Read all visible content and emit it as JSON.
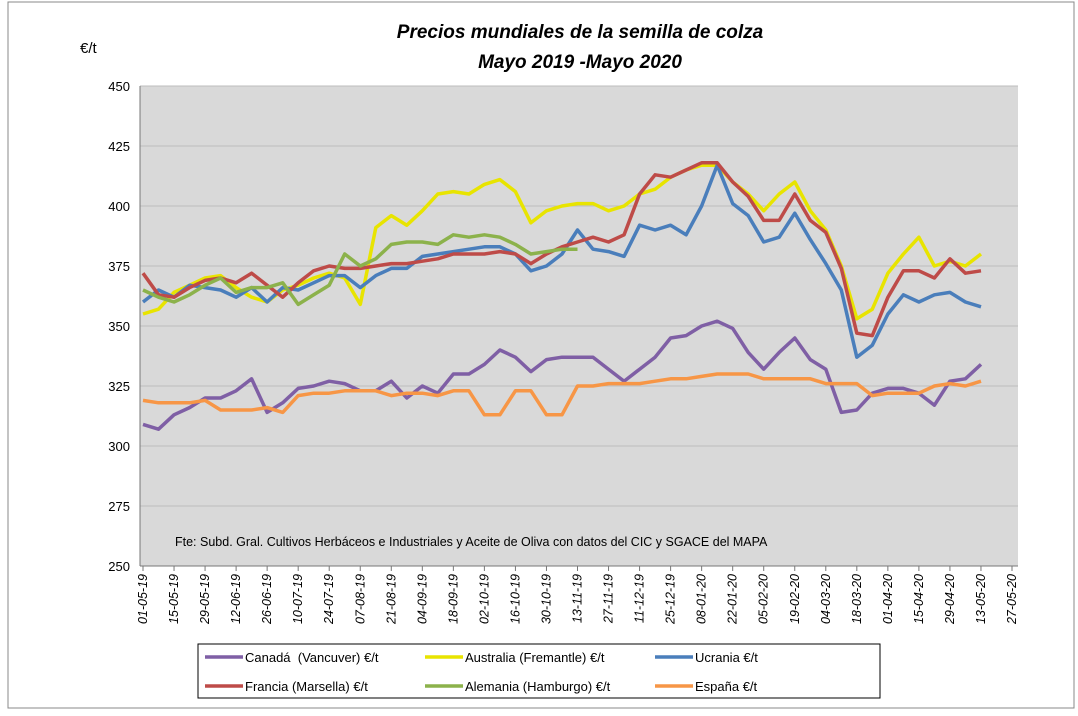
{
  "chart_data": {
    "type": "line",
    "title": "Precios mundiales de la semilla de colza",
    "subtitle": "Mayo 2019 -Mayo 2020",
    "y_label": "€/t",
    "annotation": "Fte: Subd. Gral. Cultivos Herbáceos e Industriales y Aceite de Oliva con datos del CIC y SGACE del MAPA",
    "categories": [
      "01-05-19",
      null,
      "15-05-19",
      null,
      "29-05-19",
      null,
      "12-06-19",
      null,
      "26-06-19",
      null,
      "10-07-19",
      null,
      "24-07-19",
      null,
      "07-08-19",
      null,
      "21-08-19",
      null,
      "04-09-19",
      null,
      "18-09-19",
      null,
      "02-10-19",
      null,
      "16-10-19",
      null,
      "30-10-19",
      null,
      "13-11-19",
      null,
      "27-11-19",
      null,
      "11-12-19",
      null,
      "25-12-19",
      null,
      "08-01-20",
      null,
      "22-01-20",
      null,
      "05-02-20",
      null,
      "19-02-20",
      null,
      "04-03-20",
      null,
      "18-03-20",
      null,
      "01-04-20",
      null,
      "15-04-20",
      null,
      "29-04-20",
      null,
      "13-05-20",
      null,
      "27-05-20"
    ],
    "ylim": [
      250,
      450
    ],
    "yticks": [
      250,
      275,
      300,
      325,
      350,
      375,
      400,
      425,
      450
    ],
    "grid": true,
    "legend": "bottom",
    "series": [
      {
        "name": "Canadá  (Vancuver) €/t",
        "color": "#7f5fa5",
        "values": [
          309,
          307,
          313,
          316,
          320,
          320,
          323,
          328,
          314,
          318,
          324,
          325,
          327,
          326,
          323,
          323,
          327,
          320,
          325,
          322,
          330,
          330,
          334,
          340,
          337,
          331,
          336,
          337,
          337,
          337,
          332,
          327,
          332,
          337,
          345,
          346,
          350,
          352,
          349,
          339,
          332,
          339,
          345,
          336,
          332,
          314,
          315,
          322,
          324,
          324,
          322,
          317,
          327,
          328,
          334,
          null,
          null
        ]
      },
      {
        "name": "Australia (Fremantle) €/t",
        "color": "#e8e400",
        "values": [
          355,
          357,
          364,
          367,
          370,
          371,
          366,
          362,
          360,
          365,
          367,
          370,
          372,
          370,
          359,
          391,
          396,
          392,
          398,
          405,
          406,
          405,
          409,
          411,
          406,
          393,
          398,
          400,
          401,
          401,
          398,
          400,
          405,
          407,
          412,
          415,
          417,
          417,
          410,
          405,
          398,
          405,
          410,
          398,
          390,
          375,
          353,
          357,
          372,
          380,
          387,
          375,
          377,
          375,
          380,
          null,
          null
        ]
      },
      {
        "name": "Ucrania €/t",
        "color": "#4a7ebb",
        "values": [
          360,
          365,
          362,
          367,
          366,
          365,
          362,
          366,
          360,
          366,
          365,
          368,
          371,
          371,
          366,
          371,
          374,
          374,
          379,
          380,
          381,
          382,
          383,
          383,
          380,
          373,
          375,
          380,
          390,
          382,
          381,
          379,
          392,
          390,
          392,
          388,
          400,
          417,
          401,
          396,
          385,
          387,
          397,
          386,
          376,
          365,
          337,
          342,
          355,
          363,
          360,
          363,
          364,
          360,
          358,
          null,
          null
        ]
      },
      {
        "name": "Francia (Marsella) €/t",
        "color": "#be4b48",
        "values": [
          372,
          363,
          362,
          366,
          369,
          370,
          368,
          372,
          367,
          362,
          368,
          373,
          375,
          374,
          374,
          375,
          376,
          376,
          377,
          378,
          380,
          380,
          380,
          381,
          380,
          376,
          380,
          383,
          385,
          387,
          385,
          388,
          405,
          413,
          412,
          415,
          418,
          418,
          410,
          404,
          394,
          394,
          405,
          394,
          389,
          374,
          347,
          346,
          362,
          373,
          373,
          370,
          378,
          372,
          373,
          null,
          null
        ]
      },
      {
        "name": "Alemania (Hamburgo) €/t",
        "color": "#8cb24b",
        "values": [
          365,
          362,
          360,
          363,
          367,
          370,
          364,
          366,
          366,
          368,
          359,
          363,
          367,
          380,
          375,
          378,
          384,
          385,
          385,
          384,
          388,
          387,
          388,
          387,
          384,
          380,
          381,
          382,
          382,
          null,
          null,
          null,
          null,
          null,
          null,
          null,
          null,
          null,
          null,
          null,
          null,
          null,
          null,
          null,
          null,
          null,
          null,
          null,
          null,
          null,
          null,
          null,
          null,
          null,
          null,
          null,
          null
        ]
      },
      {
        "name": "España €/t",
        "color": "#f79646",
        "values": [
          319,
          318,
          318,
          318,
          319,
          315,
          315,
          315,
          316,
          314,
          321,
          322,
          322,
          323,
          323,
          323,
          321,
          322,
          322,
          321,
          323,
          323,
          313,
          313,
          323,
          323,
          313,
          313,
          325,
          325,
          326,
          326,
          326,
          327,
          328,
          328,
          329,
          330,
          330,
          330,
          328,
          328,
          328,
          328,
          326,
          326,
          326,
          321,
          322,
          322,
          322,
          325,
          326,
          325,
          327,
          null,
          null
        ]
      }
    ]
  }
}
